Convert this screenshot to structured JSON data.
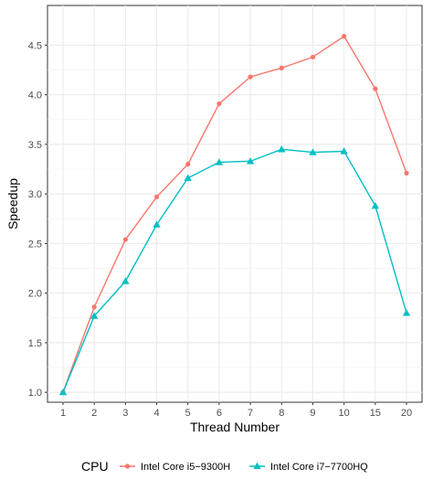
{
  "chart_data": {
    "type": "line",
    "xlabel": "Thread Number",
    "ylabel": "Speedup",
    "categories": [
      "1",
      "2",
      "3",
      "4",
      "5",
      "6",
      "7",
      "8",
      "9",
      "10",
      "15",
      "20"
    ],
    "yticks": [
      "1.0",
      "1.5",
      "2.0",
      "2.5",
      "3.0",
      "3.5",
      "4.0",
      "4.5"
    ],
    "ylim": [
      0.9,
      4.9
    ],
    "grid": true,
    "legend": {
      "title": "CPU",
      "position": "bottom"
    },
    "series": [
      {
        "name": "Intel Core i5−9300H",
        "color": "#F8766D",
        "marker": "circle",
        "values": [
          1.0,
          1.86,
          2.54,
          2.97,
          3.3,
          3.91,
          4.18,
          4.27,
          4.38,
          4.59,
          4.06,
          3.21
        ]
      },
      {
        "name": "Intel Core i7−7700HQ",
        "color": "#00BFC4",
        "marker": "triangle",
        "values": [
          1.0,
          1.77,
          2.12,
          2.69,
          3.16,
          3.32,
          3.33,
          3.45,
          3.42,
          3.43,
          2.88,
          1.8
        ]
      }
    ]
  }
}
